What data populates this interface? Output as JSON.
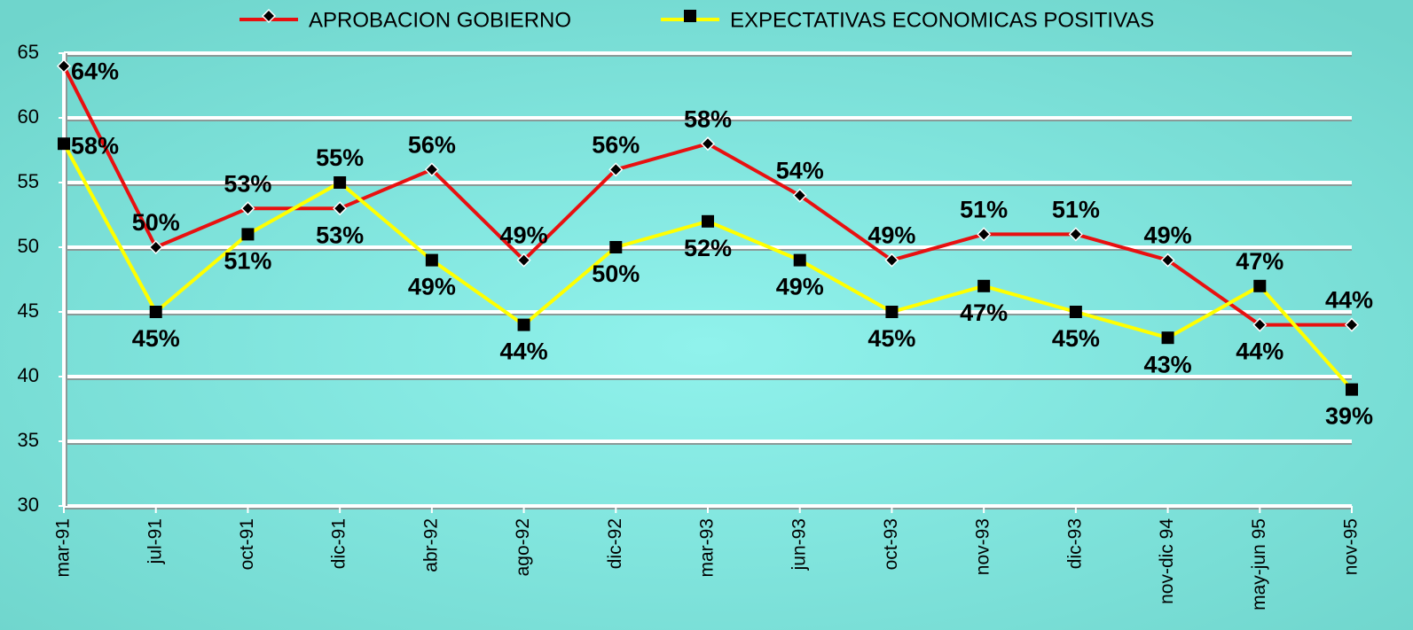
{
  "chart_data": {
    "type": "line",
    "categories": [
      "mar-91",
      "jul-91",
      "oct-91",
      "dic-91",
      "abr-92",
      "ago-92",
      "dic-92",
      "mar-93",
      "jun-93",
      "oct-93",
      "nov-93",
      "dic-93",
      "nov-dic 94",
      "may-jun 95",
      "nov-95"
    ],
    "series": [
      {
        "name": "APROBACION GOBIERNO",
        "color": "#e81010",
        "marker": "diamond",
        "values": [
          64,
          50,
          53,
          53,
          56,
          49,
          56,
          58,
          54,
          49,
          51,
          51,
          49,
          44,
          44
        ],
        "value_labels": [
          "64%",
          "50%",
          "53%",
          "53%",
          "56%",
          "49%",
          "56%",
          "58%",
          "54%",
          "49%",
          "51%",
          "51%",
          "49%",
          "44%",
          "44%"
        ]
      },
      {
        "name": "EXPECTATIVAS ECONOMICAS POSITIVAS",
        "color": "#ffff00",
        "marker": "square",
        "values": [
          58,
          45,
          51,
          55,
          49,
          44,
          50,
          52,
          49,
          45,
          47,
          45,
          43,
          47,
          39
        ],
        "value_labels": [
          "58%",
          "45%",
          "51%",
          "55%",
          "49%",
          "44%",
          "50%",
          "52%",
          "49%",
          "45%",
          "47%",
          "45%",
          "43%",
          "47%",
          "39%"
        ]
      }
    ],
    "ylim": [
      30,
      65
    ],
    "yticks": [
      30,
      35,
      40,
      45,
      50,
      55,
      60,
      65
    ],
    "grid": true
  }
}
